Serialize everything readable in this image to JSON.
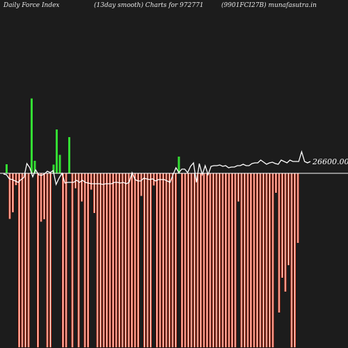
{
  "header": {
    "left": "Daily Force  Index",
    "center": "(13day smooth) Charts for 972771",
    "right": "(9901FCI27B) munafasutra.in"
  },
  "colors": {
    "background": "#1c1c1c",
    "positive": "#33dd33",
    "negative": "#e83a1e",
    "negative_core": "#ffffff",
    "line": "#ffffff",
    "baseline": "#ffffff"
  },
  "chart_data": {
    "type": "bar",
    "zero_value_label": "26600.00",
    "bars": [
      26,
      -131,
      -112,
      -34,
      -500,
      -500,
      -500,
      -500,
      215,
      36,
      -500,
      -139,
      -132,
      -500,
      -500,
      25,
      126,
      53,
      -500,
      -500,
      104,
      -500,
      -43,
      -500,
      -81,
      -500,
      -500,
      -47,
      -114,
      -500,
      -500,
      -500,
      -500,
      -500,
      -500,
      -500,
      -500,
      -500,
      -500,
      -500,
      -500,
      -500,
      -500,
      -65,
      -500,
      -500,
      -500,
      -35,
      -500,
      -500,
      -500,
      -500,
      -500,
      -500,
      -500,
      48,
      -500,
      -500,
      -500,
      -500,
      -500,
      -500,
      -500,
      -500,
      -500,
      -500,
      -500,
      -500,
      -500,
      -500,
      -500,
      -500,
      -500,
      -500,
      -81,
      -500,
      -500,
      -500,
      -500,
      -500,
      -500,
      -500,
      -500,
      -500,
      -500,
      -500,
      -56,
      -400,
      -300,
      -340,
      -264,
      -500,
      -500,
      -200
    ],
    "force_line": [
      250,
      251,
      257,
      258,
      260,
      262,
      258,
      255,
      235,
      241,
      254,
      244,
      251,
      252,
      250,
      246,
      248,
      245,
      265,
      256,
      249,
      263,
      262,
      262,
      262,
      259,
      262,
      259,
      262,
      263,
      264,
      264,
      264,
      264,
      265,
      264,
      264,
      264,
      262,
      262,
      263,
      262,
      264,
      262,
      248,
      258,
      260,
      260,
      256,
      257,
      258,
      257,
      260,
      258,
      258,
      258,
      260,
      262,
      251,
      241,
      248,
      243,
      243,
      248,
      239,
      234,
      262,
      235,
      251,
      238,
      251,
      239,
      238,
      238,
      237,
      239,
      238,
      241,
      240,
      240,
      238,
      238,
      236,
      238,
      238,
      235,
      234,
      234,
      230,
      233,
      236,
      234,
      233,
      235,
      236,
      230,
      232,
      234,
      230,
      232,
      232,
      232,
      218,
      232,
      234,
      232
    ],
    "ylim": [
      -500,
      500
    ]
  }
}
